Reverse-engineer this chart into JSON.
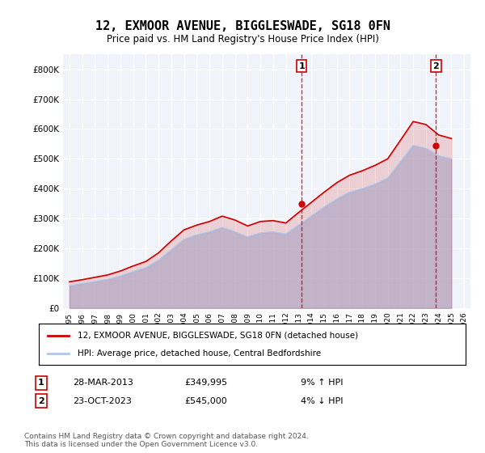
{
  "title": "12, EXMOOR AVENUE, BIGGLESWADE, SG18 0FN",
  "subtitle": "Price paid vs. HM Land Registry's House Price Index (HPI)",
  "legend_line1": "12, EXMOOR AVENUE, BIGGLESWADE, SG18 0FN (detached house)",
  "legend_line2": "HPI: Average price, detached house, Central Bedfordshire",
  "footnote": "Contains HM Land Registry data © Crown copyright and database right 2024.\nThis data is licensed under the Open Government Licence v3.0.",
  "transaction1_label": "1",
  "transaction1_date": "28-MAR-2013",
  "transaction1_price": "£349,995",
  "transaction1_hpi": "9% ↑ HPI",
  "transaction2_label": "2",
  "transaction2_date": "23-OCT-2023",
  "transaction2_price": "£545,000",
  "transaction2_hpi": "4% ↓ HPI",
  "hpi_color": "#aec6e8",
  "price_color": "#cc0000",
  "marker_color": "#cc0000",
  "dashed_color": "#cc0000",
  "background_color": "#ffffff",
  "plot_bg_color": "#f0f4fa",
  "grid_color": "#ffffff",
  "ylim": [
    0,
    850000
  ],
  "yticks": [
    0,
    100000,
    200000,
    300000,
    400000,
    500000,
    600000,
    700000,
    800000
  ],
  "ytick_labels": [
    "£0",
    "£100K",
    "£200K",
    "£300K",
    "£400K",
    "£500K",
    "£600K",
    "£700K",
    "£800K"
  ],
  "hpi_years": [
    1995,
    1996,
    1997,
    1998,
    1999,
    2000,
    2001,
    2002,
    2003,
    2004,
    2005,
    2006,
    2007,
    2008,
    2009,
    2010,
    2011,
    2012,
    2013,
    2014,
    2015,
    2016,
    2017,
    2018,
    2019,
    2020,
    2021,
    2022,
    2023,
    2024,
    2025
  ],
  "hpi_values": [
    75000,
    82000,
    89000,
    96000,
    107000,
    122000,
    135000,
    160000,
    195000,
    230000,
    245000,
    255000,
    270000,
    255000,
    238000,
    252000,
    255000,
    248000,
    278000,
    308000,
    338000,
    365000,
    388000,
    400000,
    415000,
    435000,
    490000,
    545000,
    535000,
    510000,
    500000
  ],
  "price_years": [
    1995,
    1996,
    1997,
    1998,
    1999,
    2000,
    2001,
    2002,
    2003,
    2004,
    2005,
    2006,
    2007,
    2008,
    2009,
    2010,
    2011,
    2012,
    2013,
    2014,
    2015,
    2016,
    2017,
    2018,
    2019,
    2020,
    2021,
    2022,
    2023,
    2024,
    2025
  ],
  "price_values": [
    88000,
    95000,
    103000,
    111000,
    124000,
    141000,
    156000,
    185000,
    225000,
    262000,
    278000,
    290000,
    308000,
    295000,
    275000,
    290000,
    293000,
    285000,
    320000,
    354000,
    388000,
    420000,
    445000,
    460000,
    478000,
    500000,
    562000,
    625000,
    615000,
    580000,
    568000
  ],
  "transaction1_x": 2013.25,
  "transaction1_y": 349995,
  "transaction2_x": 2023.8,
  "transaction2_y": 545000,
  "xlim_left": 1994.5,
  "xlim_right": 2026.5,
  "xtick_years": [
    1995,
    1996,
    1997,
    1998,
    1999,
    2000,
    2001,
    2002,
    2003,
    2004,
    2005,
    2006,
    2007,
    2008,
    2009,
    2010,
    2011,
    2012,
    2013,
    2014,
    2015,
    2016,
    2017,
    2018,
    2019,
    2020,
    2021,
    2022,
    2023,
    2024,
    2025,
    2026
  ]
}
